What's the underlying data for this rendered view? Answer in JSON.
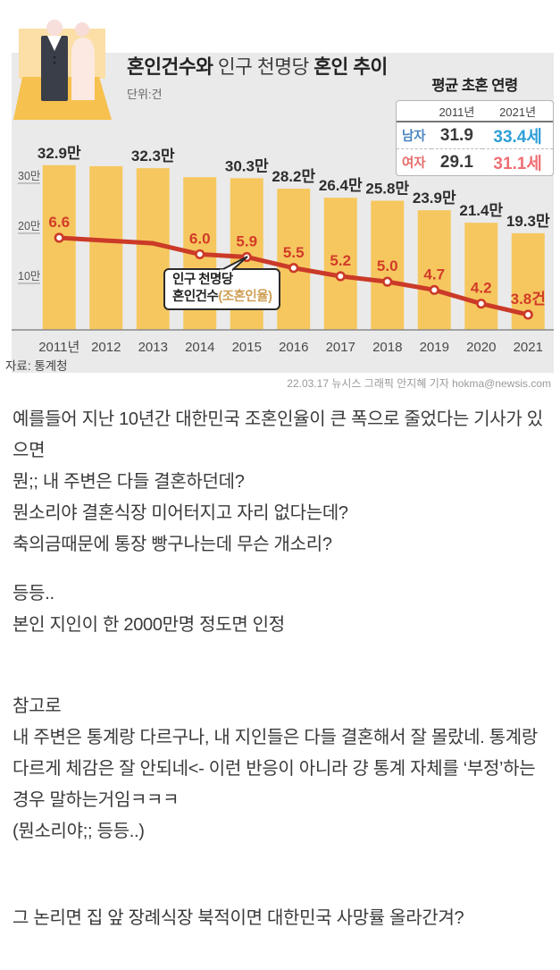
{
  "infographic": {
    "title": {
      "part1": "혼인건수와 ",
      "part2": "인구 천명당 ",
      "part3": "혼인 추이"
    },
    "unit": "단위:건",
    "source": "자료: 통계청",
    "credit": "22.03.17 뉴시스 그래픽 안지혜 기자 hokma@newsis.com",
    "age_table": {
      "title": "평균 초혼 연령",
      "col_headers": [
        "2011년",
        "2021년"
      ],
      "rows": [
        {
          "label": "남자",
          "v2011": "31.9",
          "v2021": "33.4세",
          "label_color": "#4a86c0",
          "value_color": "#2f9fd8"
        },
        {
          "label": "여자",
          "v2011": "29.1",
          "v2021": "31.1세",
          "label_color": "#e56a6a",
          "value_color": "#ef6f74"
        }
      ]
    },
    "callout": {
      "line1": "인구 천명당",
      "line2_bold": "혼인건수",
      "line2_paren": "(조혼인율)"
    }
  },
  "chart_data": {
    "type": "bar",
    "title": "혼인건수와 인구 천명당 혼인 추이",
    "categories": [
      "2011년",
      "2012",
      "2013",
      "2014",
      "2015",
      "2016",
      "2017",
      "2018",
      "2019",
      "2020",
      "2021"
    ],
    "series": [
      {
        "name": "혼인건수(만 건)",
        "type": "bar",
        "values": [
          32.9,
          32.7,
          32.3,
          30.5,
          30.3,
          28.2,
          26.4,
          25.8,
          23.9,
          21.4,
          19.3
        ],
        "labels": [
          "32.9만",
          null,
          "32.3만",
          null,
          "30.3만",
          "28.2만",
          "26.4만",
          "25.8만",
          "23.9만",
          "21.4만",
          "19.3만"
        ]
      },
      {
        "name": "인구 천명당 혼인건수(조혼인율)",
        "type": "line",
        "values": [
          6.6,
          6.5,
          6.4,
          6.0,
          5.9,
          5.5,
          5.2,
          5.0,
          4.7,
          4.2,
          3.8
        ],
        "labels": [
          "6.6",
          null,
          null,
          "6.0",
          "5.9",
          "5.5",
          "5.2",
          "5.0",
          "4.7",
          "4.2",
          "3.8건"
        ]
      }
    ],
    "y_ticks": [
      "30만",
      "20만",
      "10만"
    ],
    "ylim": [
      0,
      35
    ],
    "grid": false,
    "legend": "callout",
    "colors": {
      "bar": "#f6c75f",
      "line": "#cb3a28",
      "rate_label": "#d23b28",
      "bar_label": "#2d2d2d",
      "panel_bg": "#eaeaea"
    }
  },
  "commentary": {
    "blocks": [
      {
        "lines": [
          "예를들어 지난 10년간 대한민국 조혼인율이 큰 폭으로 줄었다는 기사가 있으면",
          "뭔;; 내 주변은 다들 결혼하던데?",
          "뭔소리야 결혼식장 미어터지고 자리 없다는데?",
          "축의금때문에 통장 빵구나는데 무슨 개소리?"
        ]
      },
      {
        "lines": [
          "등등..",
          "본인 지인이 한 2000만명 정도면 인정"
        ]
      },
      {
        "lines": [
          "참고로",
          "내 주변은 통계랑 다르구나, 내 지인들은 다들 결혼해서 잘 몰랐네. 통계랑 다르게 체감은 잘 안되네<- 이런 반응이 아니라 걍 통계 자체를 ‘부정’하는 경우 말하는거임ㅋㅋㅋ",
          "(뭔소리야;; 등등..)"
        ]
      },
      {
        "lines": [
          "그 논리면 집 앞 장례식장 북적이면 대한민국 사망률 올라간겨?"
        ]
      }
    ]
  }
}
